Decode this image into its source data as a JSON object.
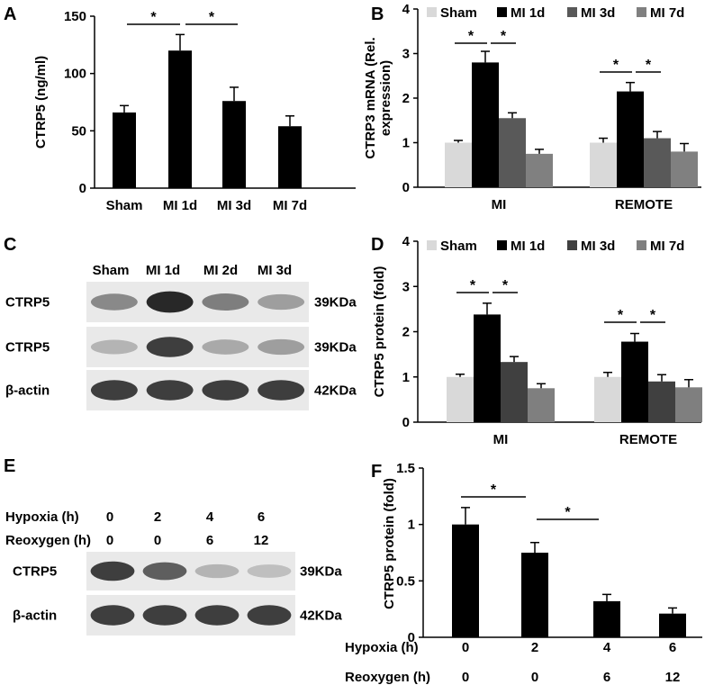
{
  "panel_letters": {
    "A": "A",
    "B": "B",
    "C": "C",
    "D": "D",
    "E": "E",
    "F": "F"
  },
  "sig_marker": "*",
  "colors": {
    "sham": "#d9d9d9",
    "mi1d": "#000000",
    "mi3d_B": "#595959",
    "mi7d_B": "#808080",
    "mi3d_D": "#404040",
    "mi7d_D": "#7f7f7f",
    "black": "#000000"
  },
  "chart_data": [
    {
      "panel": "A",
      "type": "bar",
      "ylabel": "CTRP5 (ng/ml)",
      "categories": [
        "Sham",
        "MI 1d",
        "MI 3d",
        "MI 7d"
      ],
      "values": [
        66,
        120,
        76,
        54
      ],
      "errors": [
        6,
        14,
        12,
        9
      ],
      "ylim": [
        0,
        150
      ],
      "yticks": [
        "0",
        "50",
        "100",
        "150"
      ],
      "significance": [
        [
          "Sham",
          "MI 1d"
        ],
        [
          "MI 1d",
          "MI 3d"
        ]
      ]
    },
    {
      "panel": "B",
      "type": "bar",
      "ylabel": "CTRP3 mRNA (Rel. expression)",
      "ylabel_lines": [
        "CTRP3 mRNA (Rel.",
        "expression)"
      ],
      "categories": [
        "MI",
        "REMOTE"
      ],
      "series": [
        {
          "name": "Sham",
          "values": [
            1.0,
            1.0
          ],
          "errors": [
            0.05,
            0.1
          ]
        },
        {
          "name": "MI 1d",
          "values": [
            2.8,
            2.15
          ],
          "errors": [
            0.25,
            0.2
          ]
        },
        {
          "name": "MI 3d",
          "values": [
            1.55,
            1.1
          ],
          "errors": [
            0.12,
            0.15
          ]
        },
        {
          "name": "MI 7d",
          "values": [
            0.75,
            0.8
          ],
          "errors": [
            0.1,
            0.18
          ]
        }
      ],
      "ylim": [
        0,
        4
      ],
      "yticks": [
        "0",
        "1",
        "2",
        "3",
        "4"
      ],
      "legend": "top",
      "significance": [
        [
          "MI",
          "Sham",
          "MI 1d"
        ],
        [
          "MI",
          "MI 1d",
          "MI 3d"
        ],
        [
          "REMOTE",
          "Sham",
          "MI 1d"
        ],
        [
          "REMOTE",
          "MI 1d",
          "MI 3d"
        ]
      ]
    },
    {
      "panel": "D",
      "type": "bar",
      "ylabel": "CTRP5 protein (fold)",
      "categories": [
        "MI",
        "REMOTE"
      ],
      "series": [
        {
          "name": "Sham",
          "values": [
            1.0,
            1.0
          ],
          "errors": [
            0.06,
            0.1
          ]
        },
        {
          "name": "MI 1d",
          "values": [
            2.38,
            1.78
          ],
          "errors": [
            0.25,
            0.18
          ]
        },
        {
          "name": "MI 3d",
          "values": [
            1.33,
            0.9
          ],
          "errors": [
            0.12,
            0.15
          ]
        },
        {
          "name": "MI 7d",
          "values": [
            0.75,
            0.77
          ],
          "errors": [
            0.1,
            0.17
          ]
        }
      ],
      "ylim": [
        0,
        4
      ],
      "yticks": [
        "0",
        "1",
        "2",
        "3",
        "4"
      ],
      "legend": "top",
      "significance": [
        [
          "MI",
          "Sham",
          "MI 1d"
        ],
        [
          "MI",
          "MI 1d",
          "MI 3d"
        ],
        [
          "REMOTE",
          "Sham",
          "MI 1d"
        ],
        [
          "REMOTE",
          "MI 1d",
          "MI 3d"
        ]
      ]
    },
    {
      "panel": "F",
      "type": "bar",
      "ylabel": "CTRP5 protein (fold)",
      "categories": [
        "0",
        "2",
        "4",
        "6"
      ],
      "row_labels": [
        "Hypoxia (h)",
        "Reoxygen (h)"
      ],
      "rows": [
        [
          "0",
          "2",
          "4",
          "6"
        ],
        [
          "0",
          "0",
          "6",
          "12"
        ]
      ],
      "values": [
        1.0,
        0.75,
        0.32,
        0.21
      ],
      "errors": [
        0.15,
        0.09,
        0.06,
        0.05
      ],
      "ylim": [
        0,
        1.5
      ],
      "yticks": [
        "0",
        "0.5",
        "1",
        "1.5"
      ],
      "significance": [
        [
          "0",
          "2"
        ],
        [
          "2",
          "4"
        ]
      ]
    }
  ],
  "blot_C": {
    "lanes": [
      "Sham",
      "MI 1d",
      "MI 2d",
      "MI 3d"
    ],
    "rows": [
      {
        "label": "CTRP5",
        "size": "39KDa",
        "intensity": [
          0.55,
          1.0,
          0.6,
          0.45
        ]
      },
      {
        "label": "CTRP5",
        "size": "39KDa",
        "intensity": [
          0.35,
          0.9,
          0.4,
          0.45
        ]
      },
      {
        "label": "β-actin",
        "size": "42KDa",
        "intensity": [
          0.9,
          0.9,
          0.9,
          0.9
        ]
      }
    ]
  },
  "blot_E": {
    "header_labels": [
      "Hypoxia (h)",
      "Reoxygen (h)"
    ],
    "hypoxia": [
      "0",
      "2",
      "4",
      "6"
    ],
    "reoxygen": [
      "0",
      "0",
      "6",
      "12"
    ],
    "rows": [
      {
        "label": "CTRP5",
        "size": "39KDa",
        "intensity": [
          0.9,
          0.75,
          0.35,
          0.3
        ]
      },
      {
        "label": "β-actin",
        "size": "42KDa",
        "intensity": [
          0.9,
          0.9,
          0.9,
          0.9
        ]
      }
    ]
  }
}
